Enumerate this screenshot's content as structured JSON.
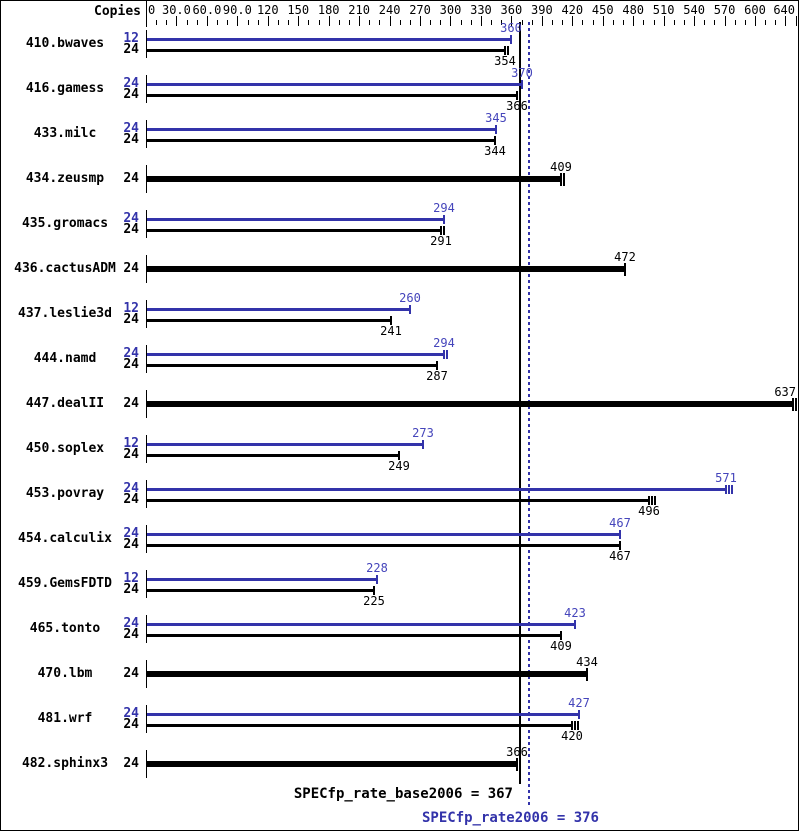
{
  "header": {
    "copies_label": "Copies"
  },
  "footer": {
    "base_summary": "SPECfp_rate_base2006 = 367",
    "peak_summary": "SPECfp_rate2006 = 376"
  },
  "colors": {
    "peak_blue": "#3333aa",
    "peak_value_blue": "#4545bb",
    "base_black": "#000000",
    "background": "#ffffff"
  },
  "chart_data": {
    "type": "bar",
    "orientation": "horizontal",
    "value_axis": {
      "min": 0,
      "max": 644,
      "position": "top",
      "minor_tick_interval": 10,
      "major_tick_interval": 30,
      "tick_labels": [
        {
          "value": 0,
          "label": "0",
          "align": "left"
        },
        {
          "value": 30,
          "label": "30.0"
        },
        {
          "value": 60,
          "label": "60.0"
        },
        {
          "value": 90,
          "label": "90.0"
        },
        {
          "value": 120,
          "label": "120"
        },
        {
          "value": 150,
          "label": "150"
        },
        {
          "value": 180,
          "label": "180"
        },
        {
          "value": 210,
          "label": "210"
        },
        {
          "value": 240,
          "label": "240"
        },
        {
          "value": 270,
          "label": "270"
        },
        {
          "value": 300,
          "label": "300"
        },
        {
          "value": 330,
          "label": "330"
        },
        {
          "value": 360,
          "label": "360"
        },
        {
          "value": 390,
          "label": "390"
        },
        {
          "value": 420,
          "label": "420"
        },
        {
          "value": 450,
          "label": "450"
        },
        {
          "value": 480,
          "label": "480"
        },
        {
          "value": 510,
          "label": "510"
        },
        {
          "value": 540,
          "label": "540"
        },
        {
          "value": 570,
          "label": "570"
        },
        {
          "value": 600,
          "label": "600"
        },
        {
          "value": 640,
          "label": "640",
          "align": "right"
        }
      ]
    },
    "series_colors": {
      "peak": "#3333aa",
      "base": "#000000"
    },
    "reference_lines": [
      {
        "name": "SPECfp_rate_base2006",
        "value": 367,
        "style": "solid",
        "color": "#000000"
      },
      {
        "name": "SPECfp_rate2006",
        "value": 376,
        "style": "dotted",
        "color": "#3333aa"
      }
    ],
    "base_result": 367,
    "peak_result": 376,
    "groups": [
      {
        "benchmark": "410.bwaves",
        "bars": [
          {
            "kind": "peak",
            "copies": 12,
            "value": 360,
            "end_ticks": 1
          },
          {
            "kind": "base",
            "copies": 24,
            "value": 354,
            "end_ticks": 2
          }
        ]
      },
      {
        "benchmark": "416.gamess",
        "bars": [
          {
            "kind": "peak",
            "copies": 24,
            "value": 370,
            "end_ticks": 1
          },
          {
            "kind": "base",
            "copies": 24,
            "value": 366,
            "end_ticks": 1
          }
        ]
      },
      {
        "benchmark": "433.milc",
        "bars": [
          {
            "kind": "peak",
            "copies": 24,
            "value": 345,
            "end_ticks": 1
          },
          {
            "kind": "base",
            "copies": 24,
            "value": 344,
            "end_ticks": 1
          }
        ]
      },
      {
        "benchmark": "434.zeusmp",
        "bars": [
          {
            "kind": "both",
            "copies": 24,
            "value": 409,
            "end_ticks": 2
          }
        ]
      },
      {
        "benchmark": "435.gromacs",
        "bars": [
          {
            "kind": "peak",
            "copies": 24,
            "value": 294,
            "end_ticks": 1
          },
          {
            "kind": "base",
            "copies": 24,
            "value": 291,
            "end_ticks": 2
          }
        ]
      },
      {
        "benchmark": "436.cactusADM",
        "bars": [
          {
            "kind": "both",
            "copies": 24,
            "value": 472,
            "end_ticks": 1
          }
        ]
      },
      {
        "benchmark": "437.leslie3d",
        "bars": [
          {
            "kind": "peak",
            "copies": 12,
            "value": 260,
            "end_ticks": 1
          },
          {
            "kind": "base",
            "copies": 24,
            "value": 241,
            "end_ticks": 1
          }
        ]
      },
      {
        "benchmark": "444.namd",
        "bars": [
          {
            "kind": "peak",
            "copies": 24,
            "value": 294,
            "end_ticks": 2
          },
          {
            "kind": "base",
            "copies": 24,
            "value": 287,
            "end_ticks": 1
          }
        ]
      },
      {
        "benchmark": "447.dealII",
        "bars": [
          {
            "kind": "both",
            "copies": 24,
            "value": 637,
            "end_ticks": 2
          }
        ]
      },
      {
        "benchmark": "450.soplex",
        "bars": [
          {
            "kind": "peak",
            "copies": 12,
            "value": 273,
            "end_ticks": 1
          },
          {
            "kind": "base",
            "copies": 24,
            "value": 249,
            "end_ticks": 1
          }
        ]
      },
      {
        "benchmark": "453.povray",
        "bars": [
          {
            "kind": "peak",
            "copies": 24,
            "value": 571,
            "end_ticks": 3
          },
          {
            "kind": "base",
            "copies": 24,
            "value": 496,
            "end_ticks": 3
          }
        ]
      },
      {
        "benchmark": "454.calculix",
        "bars": [
          {
            "kind": "peak",
            "copies": 24,
            "value": 467,
            "end_ticks": 1
          },
          {
            "kind": "base",
            "copies": 24,
            "value": 467,
            "end_ticks": 1
          }
        ]
      },
      {
        "benchmark": "459.GemsFDTD",
        "bars": [
          {
            "kind": "peak",
            "copies": 12,
            "value": 228,
            "end_ticks": 1
          },
          {
            "kind": "base",
            "copies": 24,
            "value": 225,
            "end_ticks": 1
          }
        ]
      },
      {
        "benchmark": "465.tonto",
        "bars": [
          {
            "kind": "peak",
            "copies": 24,
            "value": 423,
            "end_ticks": 1
          },
          {
            "kind": "base",
            "copies": 24,
            "value": 409,
            "end_ticks": 1
          }
        ]
      },
      {
        "benchmark": "470.lbm",
        "bars": [
          {
            "kind": "both",
            "copies": 24,
            "value": 434,
            "end_ticks": 1
          }
        ]
      },
      {
        "benchmark": "481.wrf",
        "bars": [
          {
            "kind": "peak",
            "copies": 24,
            "value": 427,
            "end_ticks": 1
          },
          {
            "kind": "base",
            "copies": 24,
            "value": 420,
            "end_ticks": 3
          }
        ]
      },
      {
        "benchmark": "482.sphinx3",
        "bars": [
          {
            "kind": "both",
            "copies": 24,
            "value": 366,
            "end_ticks": 1
          }
        ]
      }
    ]
  }
}
